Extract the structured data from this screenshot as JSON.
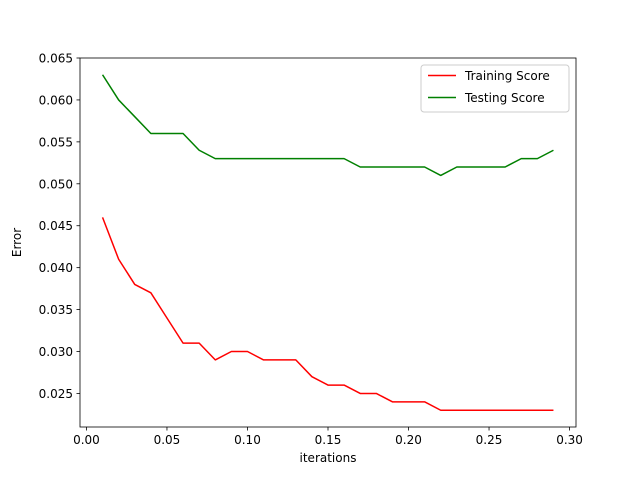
{
  "chart_data": {
    "type": "line",
    "title": "",
    "xlabel": "iterations",
    "ylabel": "Error",
    "xlim": [
      -0.004,
      0.304
    ],
    "ylim": [
      0.021,
      0.065
    ],
    "x_ticks": [
      0.0,
      0.05,
      0.1,
      0.15,
      0.2,
      0.25,
      0.3
    ],
    "x_tick_labels": [
      "0.00",
      "0.05",
      "0.10",
      "0.15",
      "0.20",
      "0.25",
      "0.30"
    ],
    "y_ticks": [
      0.025,
      0.03,
      0.035,
      0.04,
      0.045,
      0.05,
      0.055,
      0.06,
      0.065
    ],
    "y_tick_labels": [
      "0.025",
      "0.030",
      "0.035",
      "0.040",
      "0.045",
      "0.050",
      "0.055",
      "0.060",
      "0.065"
    ],
    "grid": false,
    "legend_position": "top-right",
    "x": [
      0.01,
      0.02,
      0.03,
      0.04,
      0.05,
      0.06,
      0.07,
      0.08,
      0.09,
      0.1,
      0.11,
      0.12,
      0.13,
      0.14,
      0.15,
      0.16,
      0.17,
      0.18,
      0.19,
      0.2,
      0.21,
      0.22,
      0.23,
      0.24,
      0.25,
      0.26,
      0.27,
      0.28,
      0.29
    ],
    "series": [
      {
        "name": "Training Score",
        "color": "#ff0000",
        "values": [
          0.046,
          0.041,
          0.038,
          0.037,
          0.034,
          0.031,
          0.031,
          0.029,
          0.03,
          0.03,
          0.029,
          0.029,
          0.029,
          0.027,
          0.026,
          0.026,
          0.025,
          0.025,
          0.024,
          0.024,
          0.024,
          0.023,
          0.023,
          0.023,
          0.023,
          0.023,
          0.023,
          0.023,
          0.023
        ]
      },
      {
        "name": "Testing Score",
        "color": "#008000",
        "values": [
          0.063,
          0.06,
          0.058,
          0.056,
          0.056,
          0.056,
          0.054,
          0.053,
          0.053,
          0.053,
          0.053,
          0.053,
          0.053,
          0.053,
          0.053,
          0.053,
          0.052,
          0.052,
          0.052,
          0.052,
          0.052,
          0.051,
          0.052,
          0.052,
          0.052,
          0.052,
          0.053,
          0.053,
          0.054
        ]
      }
    ]
  }
}
